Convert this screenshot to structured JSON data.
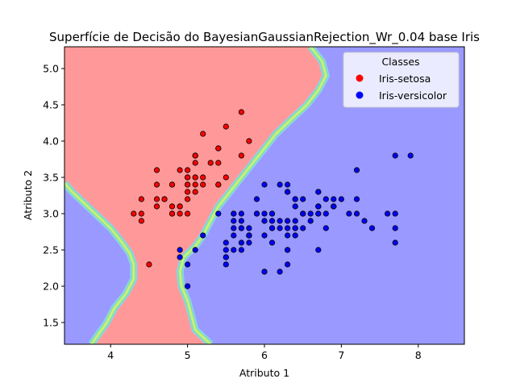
{
  "chart_data": {
    "type": "scatter",
    "title": "Superfície de Decisão do BayesianGaussianRejection_Wr_0.04 base Iris",
    "xlabel": "Atributo 1",
    "ylabel": "Atributo 2",
    "xlim": [
      3.4,
      8.6
    ],
    "ylim": [
      1.2,
      5.3
    ],
    "xticks": [
      4,
      5,
      6,
      7,
      8
    ],
    "yticks": [
      1.5,
      2.0,
      2.5,
      3.0,
      3.5,
      4.0,
      4.5,
      5.0
    ],
    "grid": false,
    "legend": {
      "title": "Classes",
      "placement": "top-right",
      "entries": [
        "Iris-setosa",
        "Iris-versicolor"
      ]
    },
    "region_colors": {
      "Iris-setosa": "#ff9999",
      "Iris-versicolor": "#9999ff"
    },
    "boundary_colors": [
      "#8ed1ef",
      "#7fe0a8",
      "#c8f07a"
    ],
    "decision_boundary": {
      "left": [
        [
          3.4,
          3.42
        ],
        [
          3.5,
          3.3
        ],
        [
          3.7,
          3.1
        ],
        [
          3.85,
          2.95
        ],
        [
          4.0,
          2.8
        ],
        [
          4.15,
          2.6
        ],
        [
          4.25,
          2.45
        ],
        [
          4.3,
          2.3
        ],
        [
          4.3,
          2.1
        ],
        [
          4.2,
          1.9
        ],
        [
          4.05,
          1.7
        ],
        [
          3.95,
          1.5
        ],
        [
          3.85,
          1.35
        ],
        [
          3.75,
          1.2
        ]
      ],
      "right": [
        [
          5.3,
          1.2
        ],
        [
          5.1,
          1.4
        ],
        [
          5.05,
          1.6
        ],
        [
          5.0,
          1.8
        ],
        [
          4.92,
          2.0
        ],
        [
          4.9,
          2.2
        ],
        [
          4.95,
          2.4
        ],
        [
          5.1,
          2.55
        ],
        [
          5.2,
          2.7
        ],
        [
          5.3,
          2.9
        ],
        [
          5.4,
          3.1
        ],
        [
          5.55,
          3.3
        ],
        [
          5.7,
          3.5
        ],
        [
          5.85,
          3.7
        ],
        [
          6.0,
          3.9
        ],
        [
          6.15,
          4.1
        ],
        [
          6.35,
          4.3
        ],
        [
          6.55,
          4.5
        ],
        [
          6.7,
          4.7
        ],
        [
          6.8,
          4.9
        ],
        [
          6.75,
          5.1
        ],
        [
          6.6,
          5.3
        ]
      ]
    },
    "series": [
      {
        "name": "Iris-setosa",
        "color": "#ff0000",
        "points": [
          [
            5.1,
            3.5
          ],
          [
            4.9,
            3.0
          ],
          [
            4.7,
            3.2
          ],
          [
            4.6,
            3.1
          ],
          [
            5.0,
            3.6
          ],
          [
            5.4,
            3.9
          ],
          [
            4.6,
            3.4
          ],
          [
            5.0,
            3.4
          ],
          [
            4.4,
            2.9
          ],
          [
            4.9,
            3.1
          ],
          [
            5.4,
            3.7
          ],
          [
            4.8,
            3.4
          ],
          [
            4.8,
            3.0
          ],
          [
            4.3,
            3.0
          ],
          [
            5.8,
            4.0
          ],
          [
            5.7,
            4.4
          ],
          [
            5.4,
            3.9
          ],
          [
            5.1,
            3.5
          ],
          [
            5.7,
            3.8
          ],
          [
            5.1,
            3.8
          ],
          [
            5.4,
            3.4
          ],
          [
            5.1,
            3.7
          ],
          [
            4.6,
            3.6
          ],
          [
            5.1,
            3.3
          ],
          [
            4.8,
            3.4
          ],
          [
            5.0,
            3.0
          ],
          [
            5.0,
            3.4
          ],
          [
            5.2,
            3.5
          ],
          [
            5.2,
            3.4
          ],
          [
            4.7,
            3.2
          ],
          [
            4.8,
            3.1
          ],
          [
            5.4,
            3.4
          ],
          [
            5.2,
            4.1
          ],
          [
            5.5,
            4.2
          ],
          [
            4.9,
            3.1
          ],
          [
            5.0,
            3.2
          ],
          [
            5.5,
            3.5
          ],
          [
            4.9,
            3.6
          ],
          [
            4.4,
            3.0
          ],
          [
            5.1,
            3.4
          ],
          [
            5.0,
            3.5
          ],
          [
            4.5,
            2.3
          ],
          [
            4.4,
            3.2
          ],
          [
            5.0,
            3.5
          ],
          [
            5.1,
            3.8
          ],
          [
            4.8,
            3.0
          ],
          [
            5.1,
            3.8
          ],
          [
            4.6,
            3.2
          ],
          [
            5.3,
            3.7
          ],
          [
            5.0,
            3.3
          ]
        ]
      },
      {
        "name": "Iris-versicolor",
        "color": "#0000ff",
        "points": [
          [
            7.0,
            3.2
          ],
          [
            6.4,
            3.2
          ],
          [
            6.9,
            3.1
          ],
          [
            5.5,
            2.3
          ],
          [
            6.5,
            2.8
          ],
          [
            5.7,
            2.8
          ],
          [
            6.3,
            3.3
          ],
          [
            4.9,
            2.4
          ],
          [
            6.6,
            2.9
          ],
          [
            5.2,
            2.7
          ],
          [
            5.0,
            2.0
          ],
          [
            5.9,
            3.0
          ],
          [
            6.0,
            2.2
          ],
          [
            6.1,
            2.9
          ],
          [
            5.6,
            2.9
          ],
          [
            6.7,
            3.1
          ],
          [
            5.6,
            3.0
          ],
          [
            5.8,
            2.7
          ],
          [
            6.2,
            2.2
          ],
          [
            5.6,
            2.5
          ],
          [
            5.9,
            3.2
          ],
          [
            6.1,
            2.8
          ],
          [
            6.3,
            2.5
          ],
          [
            6.1,
            2.8
          ],
          [
            6.4,
            2.9
          ],
          [
            6.6,
            3.0
          ],
          [
            6.8,
            2.8
          ],
          [
            6.7,
            3.0
          ],
          [
            6.0,
            2.9
          ],
          [
            5.7,
            2.6
          ],
          [
            5.5,
            2.4
          ],
          [
            5.5,
            2.4
          ],
          [
            5.8,
            2.7
          ],
          [
            6.0,
            2.7
          ],
          [
            5.4,
            3.0
          ],
          [
            6.0,
            3.4
          ],
          [
            6.7,
            3.1
          ],
          [
            6.3,
            2.3
          ],
          [
            5.6,
            3.0
          ],
          [
            5.5,
            2.5
          ],
          [
            5.5,
            2.6
          ],
          [
            6.1,
            3.0
          ],
          [
            5.8,
            2.6
          ],
          [
            5.0,
            2.3
          ],
          [
            5.6,
            2.7
          ],
          [
            5.7,
            3.0
          ],
          [
            5.7,
            2.9
          ],
          [
            6.2,
            2.9
          ],
          [
            5.1,
            2.5
          ],
          [
            5.7,
            2.8
          ],
          [
            6.3,
            3.3
          ],
          [
            5.8,
            2.7
          ],
          [
            7.1,
            3.0
          ],
          [
            6.3,
            2.9
          ],
          [
            6.5,
            3.0
          ],
          [
            7.6,
            3.0
          ],
          [
            4.9,
            2.5
          ],
          [
            7.3,
            2.9
          ],
          [
            6.7,
            2.5
          ],
          [
            7.2,
            3.6
          ],
          [
            6.5,
            3.2
          ],
          [
            6.4,
            2.7
          ],
          [
            6.8,
            3.0
          ],
          [
            5.7,
            2.5
          ],
          [
            5.8,
            2.8
          ],
          [
            6.4,
            3.2
          ],
          [
            6.5,
            3.0
          ],
          [
            7.7,
            3.8
          ],
          [
            7.7,
            2.6
          ],
          [
            6.0,
            2.2
          ],
          [
            6.9,
            3.2
          ],
          [
            5.6,
            2.8
          ],
          [
            7.7,
            2.8
          ],
          [
            6.3,
            2.7
          ],
          [
            6.7,
            3.3
          ],
          [
            7.2,
            3.2
          ],
          [
            6.2,
            2.8
          ],
          [
            6.1,
            3.0
          ],
          [
            6.4,
            2.8
          ],
          [
            7.2,
            3.0
          ],
          [
            7.4,
            2.8
          ],
          [
            7.9,
            3.8
          ],
          [
            6.4,
            2.8
          ],
          [
            6.3,
            2.8
          ],
          [
            6.1,
            2.6
          ],
          [
            7.7,
            3.0
          ],
          [
            6.3,
            3.4
          ],
          [
            6.4,
            3.1
          ],
          [
            6.0,
            3.0
          ],
          [
            6.9,
            3.1
          ],
          [
            6.7,
            3.1
          ],
          [
            6.9,
            3.1
          ],
          [
            5.8,
            2.7
          ],
          [
            6.8,
            3.2
          ],
          [
            6.7,
            3.3
          ],
          [
            6.7,
            3.0
          ],
          [
            6.3,
            2.5
          ],
          [
            6.5,
            3.0
          ],
          [
            6.2,
            3.4
          ],
          [
            5.9,
            3.0
          ]
        ]
      }
    ]
  }
}
